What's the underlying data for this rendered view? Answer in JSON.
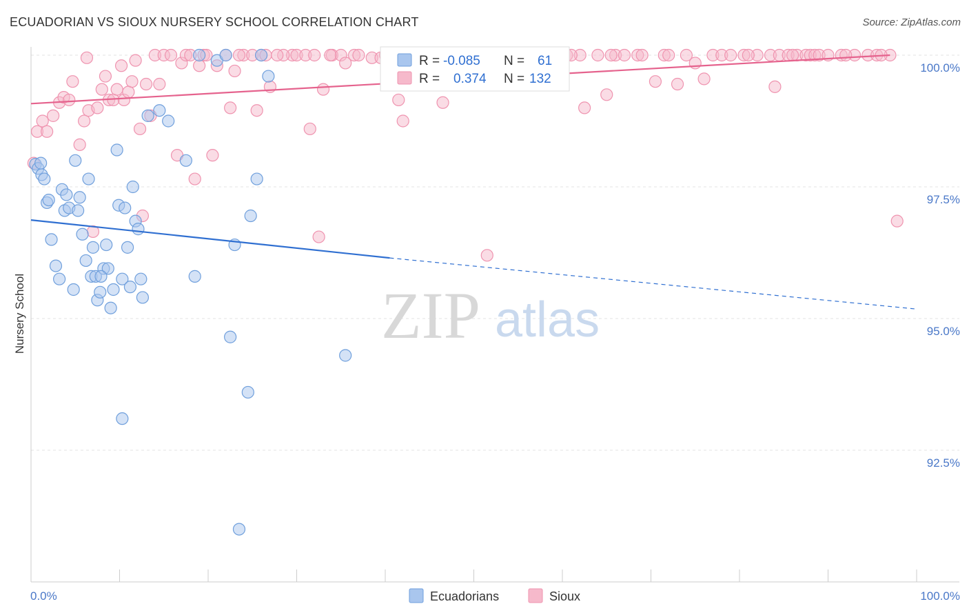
{
  "header": {
    "title": "ECUADORIAN VS SIOUX NURSERY SCHOOL CORRELATION CHART",
    "source": "Source: ZipAtlas.com"
  },
  "watermark": {
    "zip": "ZIP",
    "atlas": "atlas"
  },
  "colors": {
    "blue_fill": "#a9c6ee",
    "blue_stroke": "#6f9fdc",
    "blue_line": "#2f6fd1",
    "pink_fill": "#f6b9cb",
    "pink_stroke": "#ef93af",
    "pink_line": "#e5628d",
    "tick_text": "#4a78c8",
    "grid": "#e3e3e3"
  },
  "legend": {
    "rows": [
      {
        "r_label": "R =",
        "r_value": "-0.085",
        "n_label": "N =",
        "n_value": "61"
      },
      {
        "r_label": "R =",
        "r_value": "0.374",
        "n_label": "N =",
        "n_value": "132"
      }
    ]
  },
  "chart_data": {
    "type": "scatter",
    "title": "ECUADORIAN VS SIOUX NURSERY SCHOOL CORRELATION CHART",
    "xlabel": "",
    "ylabel": "Nursery School",
    "xlim": [
      0,
      100
    ],
    "ylim": [
      90.0,
      100.4
    ],
    "x_tick_labels": [
      "0.0%",
      "100.0%"
    ],
    "y_ticks": [
      92.5,
      95.0,
      97.5,
      100.0
    ],
    "y_tick_labels": [
      "92.5%",
      "95.0%",
      "97.5%",
      "100.0%"
    ],
    "grid": true,
    "legend_position": "top-center",
    "series": [
      {
        "name": "Ecuadorians",
        "R": -0.085,
        "N": 61,
        "trend": {
          "x0": 0,
          "y0": 96.87,
          "x1": 40.5,
          "y1": 96.15,
          "dash_x1": 100,
          "dash_y1": 95.18
        },
        "points": [
          [
            0.5,
            97.93
          ],
          [
            0.8,
            97.85
          ],
          [
            1.2,
            97.73
          ],
          [
            1.5,
            97.65
          ],
          [
            1.8,
            97.2
          ],
          [
            2.0,
            97.25
          ],
          [
            2.3,
            96.5
          ],
          [
            2.8,
            96.0
          ],
          [
            3.2,
            95.75
          ],
          [
            3.5,
            97.45
          ],
          [
            3.8,
            97.05
          ],
          [
            4.0,
            97.35
          ],
          [
            4.3,
            97.1
          ],
          [
            4.8,
            95.55
          ],
          [
            5.0,
            98.0
          ],
          [
            5.3,
            97.05
          ],
          [
            5.5,
            97.3
          ],
          [
            5.8,
            96.6
          ],
          [
            6.2,
            96.1
          ],
          [
            6.5,
            97.65
          ],
          [
            6.8,
            95.8
          ],
          [
            7.0,
            96.35
          ],
          [
            7.3,
            95.8
          ],
          [
            7.5,
            95.35
          ],
          [
            7.8,
            95.5
          ],
          [
            8.2,
            95.95
          ],
          [
            8.5,
            96.4
          ],
          [
            8.7,
            95.95
          ],
          [
            9.0,
            95.2
          ],
          [
            9.3,
            95.55
          ],
          [
            9.7,
            98.2
          ],
          [
            9.9,
            97.15
          ],
          [
            10.3,
            95.75
          ],
          [
            10.6,
            97.1
          ],
          [
            10.9,
            96.35
          ],
          [
            11.2,
            95.6
          ],
          [
            11.5,
            97.5
          ],
          [
            11.8,
            96.85
          ],
          [
            12.1,
            96.7
          ],
          [
            12.4,
            95.75
          ],
          [
            12.6,
            95.4
          ],
          [
            13.2,
            98.85
          ],
          [
            14.5,
            98.95
          ],
          [
            15.5,
            98.75
          ],
          [
            17.5,
            98.0
          ],
          [
            18.5,
            95.8
          ],
          [
            19.0,
            100.0
          ],
          [
            21.0,
            99.9
          ],
          [
            22.0,
            100.0
          ],
          [
            22.5,
            94.65
          ],
          [
            23.0,
            96.4
          ],
          [
            23.5,
            91.0
          ],
          [
            24.5,
            93.6
          ],
          [
            24.8,
            96.95
          ],
          [
            25.5,
            97.65
          ],
          [
            26.0,
            100.0
          ],
          [
            26.8,
            99.6
          ],
          [
            35.5,
            94.3
          ],
          [
            10.3,
            93.1
          ],
          [
            1.1,
            97.95
          ],
          [
            7.9,
            95.8
          ]
        ]
      },
      {
        "name": "Sioux",
        "R": 0.374,
        "N": 132,
        "trend": {
          "x0": 0,
          "y0": 99.08,
          "x1": 97,
          "y1": 100.0
        },
        "points": [
          [
            0.3,
            97.95
          ],
          [
            0.7,
            98.55
          ],
          [
            1.3,
            98.75
          ],
          [
            1.8,
            98.55
          ],
          [
            2.5,
            98.85
          ],
          [
            3.2,
            99.1
          ],
          [
            3.7,
            99.2
          ],
          [
            4.3,
            99.15
          ],
          [
            4.7,
            99.5
          ],
          [
            5.5,
            98.3
          ],
          [
            6.0,
            98.75
          ],
          [
            6.5,
            98.95
          ],
          [
            7.0,
            96.65
          ],
          [
            7.5,
            99.0
          ],
          [
            8.0,
            99.35
          ],
          [
            8.4,
            99.6
          ],
          [
            8.8,
            99.15
          ],
          [
            9.3,
            99.15
          ],
          [
            9.7,
            99.35
          ],
          [
            10.2,
            99.8
          ],
          [
            10.5,
            99.15
          ],
          [
            11.0,
            99.3
          ],
          [
            11.4,
            99.5
          ],
          [
            11.8,
            99.9
          ],
          [
            12.3,
            98.6
          ],
          [
            12.6,
            96.95
          ],
          [
            13.0,
            99.45
          ],
          [
            13.5,
            98.85
          ],
          [
            14.0,
            100.0
          ],
          [
            14.5,
            99.45
          ],
          [
            15.0,
            100.0
          ],
          [
            16.5,
            98.1
          ],
          [
            17.0,
            99.85
          ],
          [
            17.5,
            100.0
          ],
          [
            18.0,
            100.0
          ],
          [
            18.5,
            97.65
          ],
          [
            19.0,
            99.8
          ],
          [
            19.5,
            100.0
          ],
          [
            20.5,
            98.1
          ],
          [
            21.0,
            99.8
          ],
          [
            22.0,
            100.0
          ],
          [
            22.5,
            99.0
          ],
          [
            23.0,
            99.7
          ],
          [
            24.0,
            100.0
          ],
          [
            25.0,
            100.0
          ],
          [
            25.5,
            98.95
          ],
          [
            26.0,
            100.0
          ],
          [
            26.5,
            100.0
          ],
          [
            27.0,
            99.4
          ],
          [
            29.5,
            100.0
          ],
          [
            30.0,
            100.0
          ],
          [
            31.0,
            100.0
          ],
          [
            31.5,
            98.6
          ],
          [
            32.0,
            100.0
          ],
          [
            32.5,
            96.55
          ],
          [
            33.0,
            99.35
          ],
          [
            34.0,
            100.0
          ],
          [
            35.0,
            100.0
          ],
          [
            35.5,
            99.85
          ],
          [
            36.5,
            100.0
          ],
          [
            37.0,
            100.0
          ],
          [
            40.0,
            100.0
          ],
          [
            41.0,
            99.45
          ],
          [
            41.5,
            99.15
          ],
          [
            42.0,
            98.75
          ],
          [
            43.0,
            99.45
          ],
          [
            44.0,
            100.0
          ],
          [
            45.0,
            100.0
          ],
          [
            46.5,
            99.1
          ],
          [
            47.0,
            100.0
          ],
          [
            48.0,
            100.0
          ],
          [
            50.0,
            100.0
          ],
          [
            51.5,
            96.2
          ],
          [
            53.5,
            100.0
          ],
          [
            54.5,
            100.0
          ],
          [
            55.5,
            100.0
          ],
          [
            56.5,
            100.0
          ],
          [
            57.5,
            100.0
          ],
          [
            58.5,
            100.0
          ],
          [
            60.5,
            100.0
          ],
          [
            62.0,
            100.0
          ],
          [
            62.5,
            99.0
          ],
          [
            64.0,
            100.0
          ],
          [
            65.0,
            99.25
          ],
          [
            66.0,
            100.0
          ],
          [
            67.0,
            100.0
          ],
          [
            68.5,
            100.0
          ],
          [
            69.0,
            100.0
          ],
          [
            70.5,
            99.5
          ],
          [
            71.5,
            100.0
          ],
          [
            72.0,
            100.0
          ],
          [
            73.0,
            99.45
          ],
          [
            75.0,
            99.85
          ],
          [
            76.0,
            99.55
          ],
          [
            77.0,
            100.0
          ],
          [
            78.0,
            100.0
          ],
          [
            79.0,
            100.0
          ],
          [
            80.5,
            100.0
          ],
          [
            82.0,
            100.0
          ],
          [
            83.5,
            100.0
          ],
          [
            84.0,
            99.4
          ],
          [
            84.5,
            100.0
          ],
          [
            85.5,
            100.0
          ],
          [
            86.5,
            100.0
          ],
          [
            87.5,
            100.0
          ],
          [
            88.0,
            100.0
          ],
          [
            88.5,
            100.0
          ],
          [
            89.0,
            100.0
          ],
          [
            90.0,
            100.0
          ],
          [
            91.5,
            100.0
          ],
          [
            93.0,
            100.0
          ],
          [
            94.5,
            100.0
          ],
          [
            95.5,
            100.0
          ],
          [
            97.0,
            100.0
          ],
          [
            97.8,
            96.85
          ],
          [
            38.5,
            99.95
          ],
          [
            23.5,
            100.0
          ],
          [
            19.8,
            100.0
          ],
          [
            6.3,
            99.95
          ],
          [
            28.5,
            100.0
          ],
          [
            39.5,
            99.95
          ],
          [
            57.0,
            100.0
          ],
          [
            61.0,
            100.0
          ],
          [
            74.0,
            100.0
          ],
          [
            86.0,
            100.0
          ],
          [
            92.0,
            100.0
          ],
          [
            96.0,
            100.0
          ],
          [
            81.0,
            100.0
          ],
          [
            15.8,
            100.0
          ],
          [
            27.8,
            100.0
          ],
          [
            33.8,
            100.0
          ],
          [
            65.5,
            100.0
          ]
        ]
      }
    ]
  }
}
